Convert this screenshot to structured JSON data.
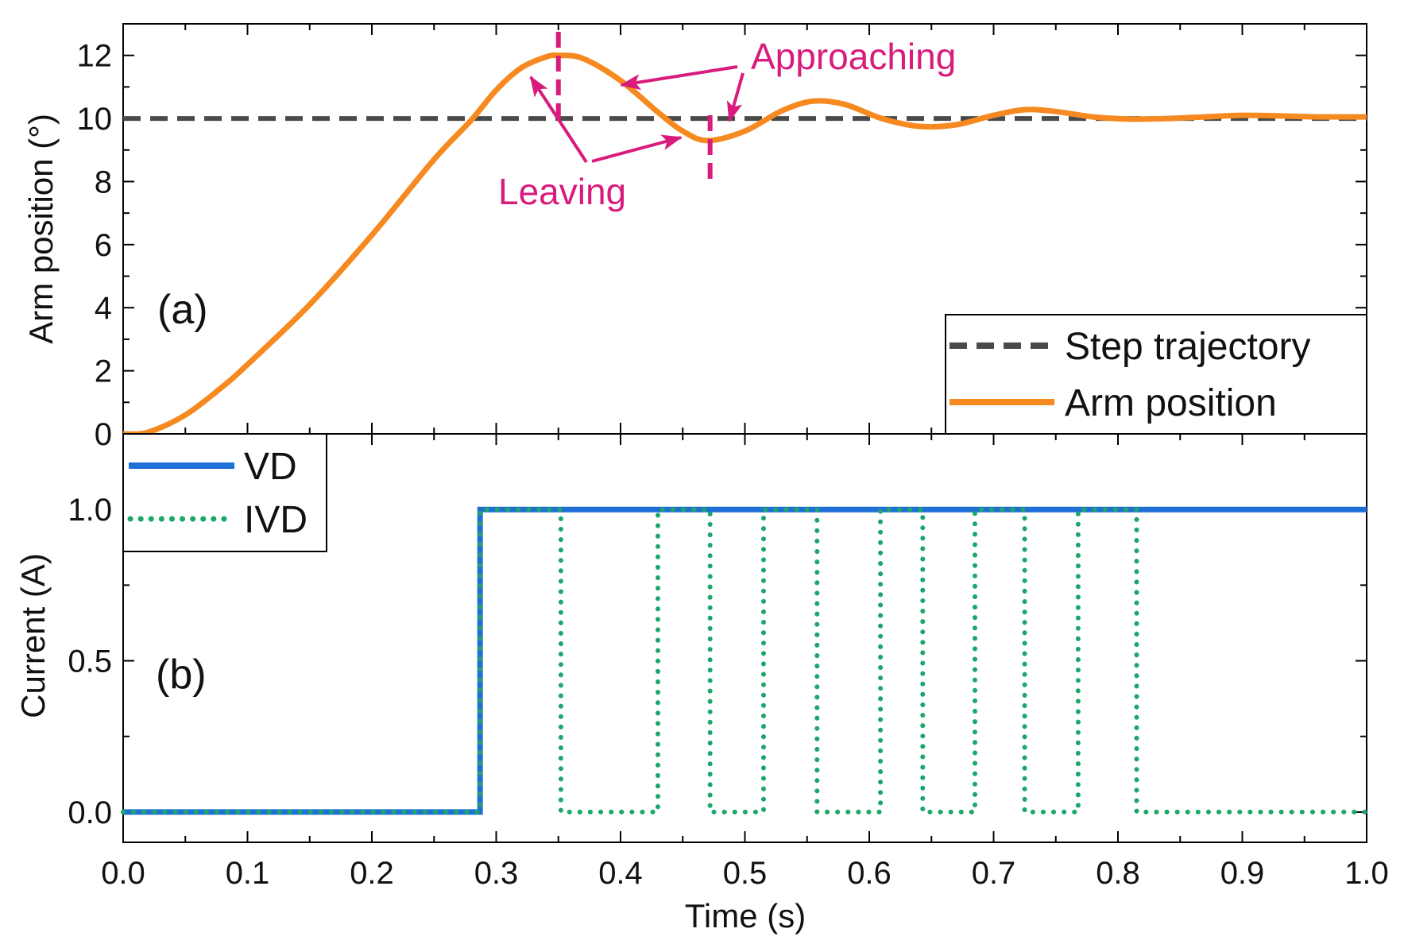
{
  "chart_data": [
    {
      "panel": "(a)",
      "type": "line",
      "xlabel": "",
      "ylabel": "Arm position (°)",
      "xlim": [
        0,
        1
      ],
      "ylim": [
        0,
        13
      ],
      "yticks": [
        0,
        2,
        4,
        6,
        8,
        10,
        12
      ],
      "ytick_labels": [
        "0",
        "2",
        "4",
        "6",
        "8",
        "10",
        "12"
      ],
      "legend_position": "bottom-right",
      "series": [
        {
          "name": "Step trajectory",
          "style": "dashed",
          "color": "#4a4a4a",
          "x": [
            0,
            1
          ],
          "y": [
            10,
            10
          ]
        },
        {
          "name": "Arm position",
          "style": "solid",
          "color": "#f6891f",
          "x": [
            0,
            0.02,
            0.05,
            0.08,
            0.1,
            0.15,
            0.2,
            0.25,
            0.28,
            0.3,
            0.32,
            0.34,
            0.35,
            0.37,
            0.4,
            0.43,
            0.45,
            0.47,
            0.5,
            0.53,
            0.555,
            0.58,
            0.61,
            0.64,
            0.67,
            0.7,
            0.725,
            0.75,
            0.78,
            0.81,
            0.84,
            0.87,
            0.9,
            0.93,
            0.96,
            1.0
          ],
          "y": [
            0,
            0.05,
            0.6,
            1.5,
            2.2,
            4.1,
            6.3,
            8.7,
            9.95,
            10.9,
            11.6,
            11.95,
            12.0,
            11.9,
            11.2,
            10.2,
            9.6,
            9.3,
            9.6,
            10.25,
            10.55,
            10.45,
            10.0,
            9.75,
            9.8,
            10.1,
            10.28,
            10.22,
            10.05,
            9.98,
            10.0,
            10.05,
            10.1,
            10.08,
            10.05,
            10.05
          ]
        }
      ],
      "annotations": {
        "approaching_label": "Approaching",
        "leaving_label": "Leaving",
        "marker_times": [
          0.35,
          0.472
        ],
        "color": "#d81b7c"
      }
    },
    {
      "panel": "(b)",
      "type": "line",
      "xlabel": "Time (s)",
      "ylabel": "Current (A)",
      "xlim": [
        0,
        1
      ],
      "ylim": [
        -0.1,
        1.25
      ],
      "xticks": [
        0,
        0.1,
        0.2,
        0.3,
        0.4,
        0.5,
        0.6,
        0.7,
        0.8,
        0.9,
        1.0
      ],
      "xtick_labels": [
        "0.0",
        "0.1",
        "0.2",
        "0.3",
        "0.4",
        "0.5",
        "0.6",
        "0.7",
        "0.8",
        "0.9",
        "1.0"
      ],
      "yticks": [
        0,
        0.5,
        1.0
      ],
      "ytick_labels": [
        "0.0",
        "0.5",
        "1.0"
      ],
      "legend_position": "top-left",
      "series": [
        {
          "name": "VD",
          "style": "solid",
          "color": "#1f6fd6",
          "x": [
            0,
            0.287,
            0.287,
            1.0
          ],
          "y": [
            0,
            0,
            1,
            1
          ]
        },
        {
          "name": "IVD",
          "style": "dotted",
          "color": "#1aa868",
          "x": [
            0,
            0.287,
            0.287,
            0.352,
            0.352,
            0.43,
            0.43,
            0.472,
            0.472,
            0.515,
            0.515,
            0.558,
            0.558,
            0.609,
            0.609,
            0.643,
            0.643,
            0.685,
            0.685,
            0.725,
            0.725,
            0.768,
            0.768,
            0.815,
            0.815,
            1.0
          ],
          "y": [
            0,
            0,
            1,
            1,
            0,
            0,
            1,
            1,
            0,
            0,
            1,
            1,
            0,
            0,
            1,
            1,
            0,
            0,
            1,
            1,
            0,
            0,
            1,
            1,
            0,
            0
          ]
        }
      ]
    }
  ]
}
